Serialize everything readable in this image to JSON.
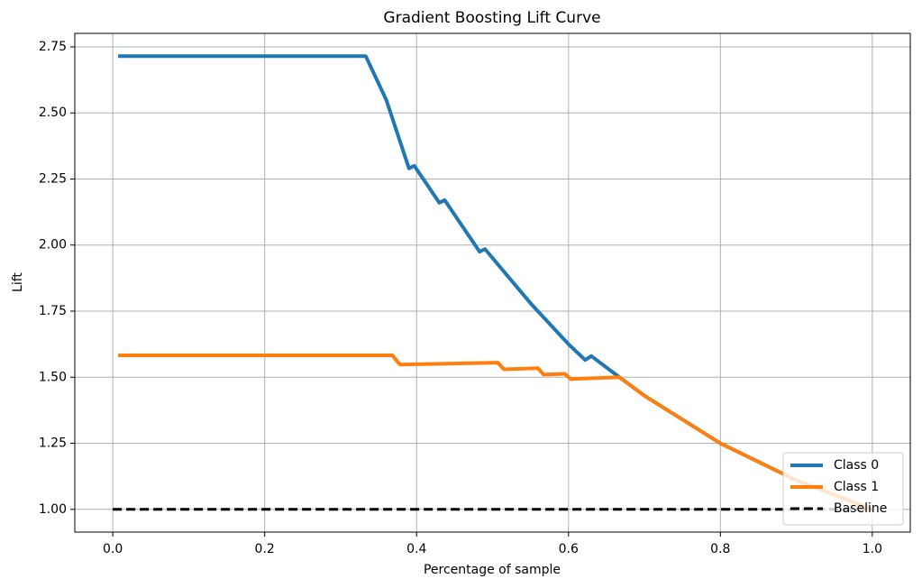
{
  "chart_data": {
    "type": "line",
    "title": "Gradient Boosting Lift Curve",
    "xlabel": "Percentage of sample",
    "ylabel": "Lift",
    "xlim": [
      -0.05,
      1.05
    ],
    "ylim": [
      0.914,
      2.801
    ],
    "xticks": [
      {
        "value": 0,
        "label": "0.0"
      },
      0.2,
      0.4,
      0.6,
      0.8,
      {
        "value": 1,
        "label": "1.0"
      }
    ],
    "yticks": [
      {
        "value": 1,
        "label": "1.00"
      },
      1.25,
      {
        "value": 1.5,
        "label": "1.50"
      },
      1.75,
      {
        "value": 2,
        "label": "2.00"
      },
      2.25,
      {
        "value": 2.5,
        "label": "2.50"
      },
      2.75
    ],
    "grid": true,
    "legend": "lower right",
    "series": [
      {
        "name": "Class 0",
        "color": "#1f77b4",
        "linestyle": "solid",
        "x": [
          0.007,
          0.333,
          0.36,
          0.39,
          0.397,
          0.43,
          0.437,
          0.483,
          0.49,
          0.55,
          0.6,
          0.622,
          0.63,
          0.667,
          0.7,
          0.8,
          0.9,
          1.0
        ],
        "values": [
          2.715,
          2.715,
          2.55,
          2.29,
          2.3,
          2.16,
          2.17,
          1.975,
          1.985,
          1.78,
          1.625,
          1.565,
          1.58,
          1.5,
          1.43,
          1.25,
          1.11,
          1.0
        ]
      },
      {
        "name": "Class 1",
        "color": "#ff7f0e",
        "linestyle": "solid",
        "x": [
          0.007,
          0.368,
          0.378,
          0.507,
          0.515,
          0.56,
          0.567,
          0.595,
          0.603,
          0.667,
          0.7,
          0.8,
          0.9,
          1.0
        ],
        "values": [
          1.583,
          1.583,
          1.548,
          1.555,
          1.53,
          1.534,
          1.51,
          1.513,
          1.493,
          1.5,
          1.43,
          1.25,
          1.11,
          1.0
        ]
      },
      {
        "name": "Baseline",
        "color": "#000000",
        "linestyle": "dashed",
        "x": [
          0,
          1
        ],
        "values": [
          1,
          1
        ]
      }
    ]
  }
}
